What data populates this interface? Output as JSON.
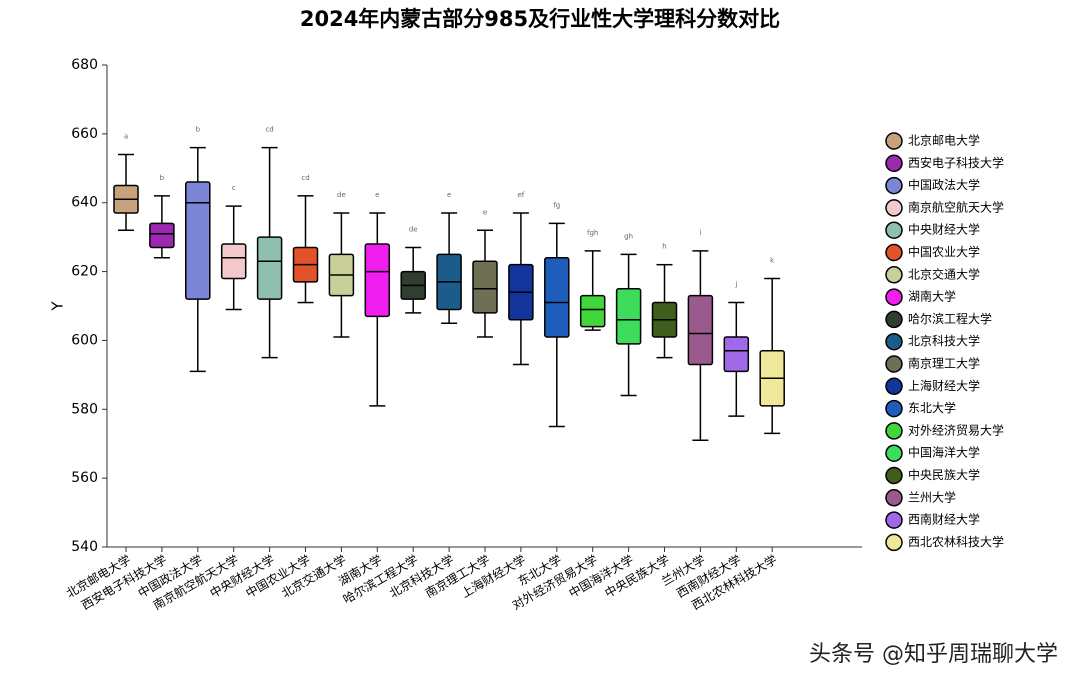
{
  "chart_data": {
    "type": "box",
    "title": "2024年内蒙古部分985及行业性大学理科分数对比",
    "y_label": "Y",
    "ylim": [
      540,
      680
    ],
    "yticks": [
      540,
      560,
      580,
      600,
      620,
      640,
      660,
      680
    ],
    "categories": [
      "北京邮电大学",
      "西安电子科技大学",
      "中国政法大学",
      "南京航空航天大学",
      "中央财经大学",
      "中国农业大学",
      "北京交通大学",
      "湖南大学",
      "哈尔滨工程大学",
      "北京科技大学",
      "南京理工大学",
      "上海财经大学",
      "东北大学",
      "对外经济贸易大学",
      "中国海洋大学",
      "中央民族大学",
      "兰州大学",
      "西南财经大学",
      "西北农林科技大学"
    ],
    "colors": [
      "#c8a27c",
      "#9c27b0",
      "#7b86d6",
      "#f3c9cc",
      "#8fbfb1",
      "#e2532a",
      "#c9cf98",
      "#f01ff0",
      "#2f3e2f",
      "#1c5c8a",
      "#6f6f56",
      "#13349b",
      "#1f5dbd",
      "#41d63a",
      "#3ddc5a",
      "#3f5d1d",
      "#9a5a8e",
      "#a069e8",
      "#efe79a"
    ],
    "min": [
      632,
      624,
      591,
      609,
      595,
      611,
      601,
      581,
      608,
      605,
      601,
      593,
      575,
      603,
      584,
      595,
      571,
      578,
      573
    ],
    "q1": [
      637,
      627,
      612,
      618,
      612,
      617,
      613,
      607,
      612,
      609,
      608,
      606,
      601,
      604,
      599,
      601,
      593,
      591,
      581
    ],
    "median": [
      641,
      631,
      640,
      624,
      623,
      622,
      619,
      620,
      616,
      617,
      615,
      614,
      611,
      609,
      606,
      606,
      602,
      597,
      589
    ],
    "q3": [
      645,
      634,
      646,
      628,
      630,
      627,
      625,
      628,
      620,
      625,
      623,
      622,
      624,
      613,
      615,
      611,
      613,
      601,
      597
    ],
    "max": [
      654,
      642,
      656,
      639,
      656,
      642,
      637,
      637,
      627,
      637,
      632,
      637,
      634,
      626,
      625,
      622,
      626,
      611,
      618
    ],
    "letters": [
      "a",
      "b",
      "b",
      "c",
      "cd",
      "cd",
      "de",
      "e",
      "de",
      "e",
      "e",
      "ef",
      "fg",
      "fgh",
      "gh",
      "h",
      "i",
      "j",
      "k"
    ],
    "watermark": "头条号 @知乎周瑞聊大学"
  }
}
